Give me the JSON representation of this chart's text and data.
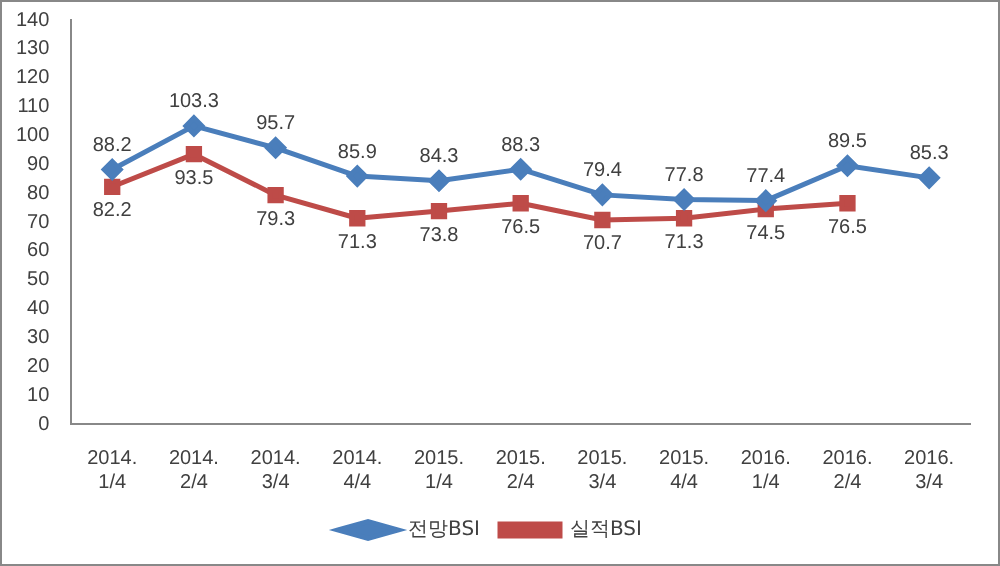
{
  "chart_data": {
    "type": "line",
    "categories": [
      "2014. 1/4",
      "2014. 2/4",
      "2014. 3/4",
      "2014. 4/4",
      "2015. 1/4",
      "2015. 2/4",
      "2015. 3/4",
      "2015. 4/4",
      "2016. 1/4",
      "2016. 2/4",
      "2016. 3/4"
    ],
    "series": [
      {
        "name": "전망BSI",
        "color": "#4a7ebb",
        "marker": "diamond",
        "values": [
          88.2,
          103.3,
          95.7,
          85.9,
          84.3,
          88.3,
          79.4,
          77.8,
          77.4,
          89.5,
          85.3
        ]
      },
      {
        "name": "실적BSI",
        "color": "#be4b48",
        "marker": "square",
        "values": [
          82.2,
          93.5,
          79.3,
          71.3,
          73.8,
          76.5,
          70.7,
          71.3,
          74.5,
          76.5,
          null
        ]
      }
    ],
    "ylim": [
      0,
      140
    ],
    "yticks": [
      0,
      10,
      20,
      30,
      40,
      50,
      60,
      70,
      80,
      90,
      100,
      110,
      120,
      130,
      140
    ],
    "legend": "bottom",
    "data_labels": true
  }
}
